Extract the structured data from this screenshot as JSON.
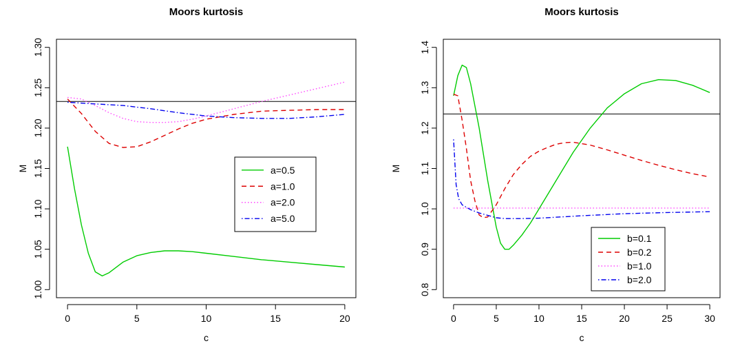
{
  "chart_data": [
    {
      "type": "line",
      "title": "Moors kurtosis",
      "xlabel": "c",
      "ylabel": "M",
      "xlim": [
        -0.8,
        20.8
      ],
      "ylim": [
        0.99,
        1.31
      ],
      "xticks": [
        "0",
        "5",
        "10",
        "15",
        "20"
      ],
      "yticks": [
        "1.00",
        "1.05",
        "1.10",
        "1.15",
        "1.20",
        "1.25",
        "1.30"
      ],
      "hline": 1.233,
      "legend_position": "right",
      "series": [
        {
          "name": "a=0.5",
          "color": "#00cc00",
          "dash": "solid",
          "points": [
            [
              0,
              1.177
            ],
            [
              0.5,
              1.125
            ],
            [
              1,
              1.08
            ],
            [
              1.5,
              1.045
            ],
            [
              2,
              1.022
            ],
            [
              2.5,
              1.017
            ],
            [
              3,
              1.021
            ],
            [
              4,
              1.034
            ],
            [
              5,
              1.042
            ],
            [
              6,
              1.046
            ],
            [
              7,
              1.048
            ],
            [
              8,
              1.048
            ],
            [
              9,
              1.047
            ],
            [
              10,
              1.045
            ],
            [
              12,
              1.041
            ],
            [
              14,
              1.037
            ],
            [
              16,
              1.034
            ],
            [
              18,
              1.031
            ],
            [
              20,
              1.028
            ]
          ]
        },
        {
          "name": "a=1.0",
          "color": "#dd0000",
          "dash": "dashed",
          "points": [
            [
              0,
              1.236
            ],
            [
              1,
              1.218
            ],
            [
              2,
              1.196
            ],
            [
              3,
              1.181
            ],
            [
              4,
              1.176
            ],
            [
              5,
              1.177
            ],
            [
              6,
              1.183
            ],
            [
              7,
              1.191
            ],
            [
              8,
              1.199
            ],
            [
              9,
              1.206
            ],
            [
              10,
              1.211
            ],
            [
              12,
              1.217
            ],
            [
              14,
              1.221
            ],
            [
              16,
              1.222
            ],
            [
              18,
              1.223
            ],
            [
              20,
              1.223
            ]
          ]
        },
        {
          "name": "a=2.0",
          "color": "#ff44ff",
          "dash": "dotted",
          "points": [
            [
              0,
              1.238
            ],
            [
              1,
              1.236
            ],
            [
              2,
              1.228
            ],
            [
              3,
              1.219
            ],
            [
              4,
              1.212
            ],
            [
              5,
              1.208
            ],
            [
              6,
              1.207
            ],
            [
              7,
              1.207
            ],
            [
              8,
              1.208
            ],
            [
              9,
              1.211
            ],
            [
              10,
              1.215
            ],
            [
              12,
              1.224
            ],
            [
              14,
              1.233
            ],
            [
              16,
              1.241
            ],
            [
              18,
              1.249
            ],
            [
              20,
              1.257
            ]
          ]
        },
        {
          "name": "a=5.0",
          "color": "#0000ee",
          "dash": "dotdash",
          "points": [
            [
              0,
              1.232
            ],
            [
              2,
              1.23
            ],
            [
              4,
              1.228
            ],
            [
              6,
              1.224
            ],
            [
              8,
              1.219
            ],
            [
              10,
              1.215
            ],
            [
              12,
              1.213
            ],
            [
              14,
              1.212
            ],
            [
              16,
              1.212
            ],
            [
              18,
              1.214
            ],
            [
              20,
              1.217
            ]
          ]
        }
      ]
    },
    {
      "type": "line",
      "title": "Moors kurtosis",
      "xlabel": "c",
      "ylabel": "M",
      "xlim": [
        -1.2,
        31.2
      ],
      "ylim": [
        0.78,
        1.42
      ],
      "xticks": [
        "0",
        "5",
        "10",
        "15",
        "20",
        "25",
        "30"
      ],
      "yticks": [
        "0.8",
        "0.9",
        "1.0",
        "1.1",
        "1.2",
        "1.3",
        "1.4"
      ],
      "hline": 1.235,
      "legend_position": "bottom-right",
      "series": [
        {
          "name": "b=0.1",
          "color": "#00cc00",
          "dash": "solid",
          "points": [
            [
              0,
              1.28
            ],
            [
              0.5,
              1.33
            ],
            [
              1,
              1.356
            ],
            [
              1.5,
              1.35
            ],
            [
              2,
              1.31
            ],
            [
              3,
              1.2
            ],
            [
              4,
              1.07
            ],
            [
              5,
              0.955
            ],
            [
              5.5,
              0.915
            ],
            [
              6,
              0.9
            ],
            [
              6.5,
              0.9
            ],
            [
              7,
              0.91
            ],
            [
              8,
              0.935
            ],
            [
              9,
              0.965
            ],
            [
              10,
              1.0
            ],
            [
              12,
              1.07
            ],
            [
              14,
              1.14
            ],
            [
              16,
              1.2
            ],
            [
              18,
              1.25
            ],
            [
              20,
              1.285
            ],
            [
              22,
              1.31
            ],
            [
              24,
              1.32
            ],
            [
              26,
              1.318
            ],
            [
              28,
              1.306
            ],
            [
              30,
              1.288
            ]
          ]
        },
        {
          "name": "b=0.2",
          "color": "#dd0000",
          "dash": "dashed",
          "points": [
            [
              0,
              1.284
            ],
            [
              0.5,
              1.28
            ],
            [
              1,
              1.22
            ],
            [
              1.5,
              1.15
            ],
            [
              2,
              1.07
            ],
            [
              2.5,
              1.02
            ],
            [
              3,
              0.985
            ],
            [
              3.5,
              0.978
            ],
            [
              4,
              0.98
            ],
            [
              5,
              1.01
            ],
            [
              6,
              1.05
            ],
            [
              7,
              1.085
            ],
            [
              8,
              1.11
            ],
            [
              9,
              1.13
            ],
            [
              10,
              1.143
            ],
            [
              11,
              1.152
            ],
            [
              12,
              1.16
            ],
            [
              13,
              1.164
            ],
            [
              14,
              1.165
            ],
            [
              16,
              1.158
            ],
            [
              18,
              1.146
            ],
            [
              20,
              1.133
            ],
            [
              22,
              1.12
            ],
            [
              24,
              1.108
            ],
            [
              26,
              1.097
            ],
            [
              28,
              1.087
            ],
            [
              30,
              1.079
            ]
          ]
        },
        {
          "name": "b=1.0",
          "color": "#ff44ff",
          "dash": "dotted",
          "points": [
            [
              0,
              1.002
            ],
            [
              5,
              1.002
            ],
            [
              10,
              1.002
            ],
            [
              15,
              1.002
            ],
            [
              20,
              1.002
            ],
            [
              25,
              1.002
            ],
            [
              30,
              1.002
            ]
          ]
        },
        {
          "name": "b=2.0",
          "color": "#0000ee",
          "dash": "dotdash",
          "points": [
            [
              0,
              1.172
            ],
            [
              0.3,
              1.06
            ],
            [
              0.6,
              1.025
            ],
            [
              1,
              1.01
            ],
            [
              2,
              0.998
            ],
            [
              3,
              0.99
            ],
            [
              4,
              0.984
            ],
            [
              5,
              0.978
            ],
            [
              6,
              0.976
            ],
            [
              8,
              0.976
            ],
            [
              10,
              0.977
            ],
            [
              15,
              0.983
            ],
            [
              20,
              0.988
            ],
            [
              25,
              0.991
            ],
            [
              30,
              0.993
            ]
          ]
        }
      ]
    }
  ]
}
